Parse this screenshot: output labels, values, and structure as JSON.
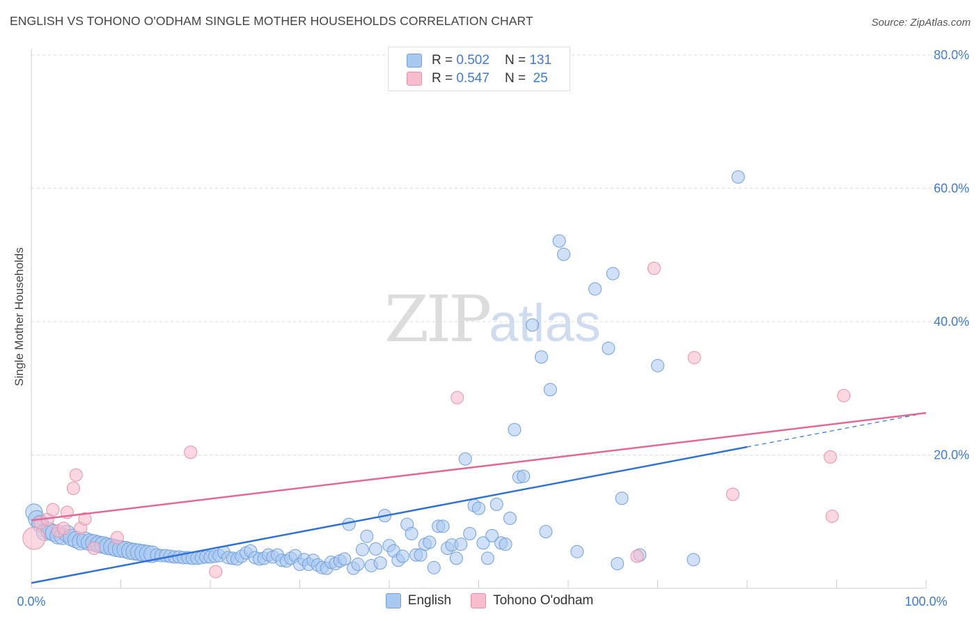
{
  "title": "ENGLISH VS TOHONO O'ODHAM SINGLE MOTHER HOUSEHOLDS CORRELATION CHART",
  "source": "Source: ZipAtlas.com",
  "watermark": {
    "zip": "ZIP",
    "atlas": "atlas"
  },
  "legend": {
    "english": {
      "r_label": "R =",
      "r_value": "0.502",
      "n_label": "N =",
      "n_value": "131"
    },
    "tohono": {
      "r_label": "R =",
      "r_value": "0.547",
      "n_label": "N =",
      "n_value": "25"
    }
  },
  "colors": {
    "english_fill": "#a9c8f0",
    "english_stroke": "#6f9fdc",
    "english_line": "#2f72d4",
    "tohono_fill": "#f7bccd",
    "tohono_stroke": "#e890aa",
    "tohono_line": "#e06a94",
    "grid": "#d9d9d9",
    "tick_label": "#3d7ad6"
  },
  "chart_data": {
    "type": "scatter",
    "title": "ENGLISH VS TOHONO O'ODHAM SINGLE MOTHER HOUSEHOLDS CORRELATION CHART",
    "xlabel": "",
    "ylabel": "Single Mother Households",
    "xlim": [
      0,
      100
    ],
    "ylim": [
      0,
      80
    ],
    "x_tick_labels": [
      "0.0%",
      "100.0%"
    ],
    "y_ticks": [
      20,
      40,
      60,
      80
    ],
    "y_tick_labels": [
      "20.0%",
      "40.0%",
      "60.0%",
      "80.0%"
    ],
    "grid": true,
    "legend_position": "top-center",
    "series": [
      {
        "name": "English",
        "regression": {
          "x0": 0,
          "y0": 0.8,
          "x1": 80,
          "y1": 21.2,
          "dashed_to_x": 100,
          "dashed_to_y": 26.3
        },
        "points": [
          [
            0.3,
            11.4
          ],
          [
            0.6,
            10.4
          ],
          [
            1,
            9.7
          ],
          [
            1.5,
            8.4
          ],
          [
            2,
            8.6
          ],
          [
            2.5,
            8.3
          ],
          [
            3,
            7.9
          ],
          [
            3.5,
            7.8
          ],
          [
            4,
            8.2
          ],
          [
            4.5,
            7.6
          ],
          [
            5,
            7.3
          ],
          [
            5.5,
            7.0
          ],
          [
            6,
            7.2
          ],
          [
            6.5,
            6.9
          ],
          [
            7,
            6.8
          ],
          [
            7.5,
            6.6
          ],
          [
            8,
            6.5
          ],
          [
            8.5,
            6.3
          ],
          [
            9,
            6.2
          ],
          [
            9.5,
            6.0
          ],
          [
            10,
            5.9
          ],
          [
            10.5,
            5.8
          ],
          [
            11,
            5.6
          ],
          [
            11.5,
            5.5
          ],
          [
            12,
            5.4
          ],
          [
            12.5,
            5.3
          ],
          [
            13,
            5.2
          ],
          [
            13.5,
            5.1
          ],
          [
            14,
            5.0
          ],
          [
            14.5,
            4.9
          ],
          [
            15,
            4.9
          ],
          [
            15.5,
            4.8
          ],
          [
            16,
            4.7
          ],
          [
            16.5,
            4.7
          ],
          [
            17,
            4.6
          ],
          [
            17.5,
            4.6
          ],
          [
            18,
            4.5
          ],
          [
            18.5,
            4.5
          ],
          [
            19,
            4.6
          ],
          [
            19.5,
            4.7
          ],
          [
            20,
            4.7
          ],
          [
            20.5,
            4.8
          ],
          [
            21,
            4.9
          ],
          [
            21.5,
            5.4
          ],
          [
            22,
            4.6
          ],
          [
            22.5,
            4.5
          ],
          [
            23,
            4.4
          ],
          [
            23.5,
            4.8
          ],
          [
            24,
            5.3
          ],
          [
            24.5,
            5.6
          ],
          [
            25,
            4.6
          ],
          [
            25.5,
            4.4
          ],
          [
            26,
            4.5
          ],
          [
            26.5,
            5.0
          ],
          [
            27,
            4.7
          ],
          [
            27.5,
            5.0
          ],
          [
            28,
            4.2
          ],
          [
            28.5,
            4.1
          ],
          [
            29,
            4.5
          ],
          [
            29.5,
            4.9
          ],
          [
            30,
            3.6
          ],
          [
            30.5,
            4.3
          ],
          [
            31,
            3.6
          ],
          [
            31.5,
            4.2
          ],
          [
            32,
            3.5
          ],
          [
            32.5,
            3.1
          ],
          [
            33,
            3.0
          ],
          [
            33.5,
            3.9
          ],
          [
            34,
            3.7
          ],
          [
            34.5,
            4.1
          ],
          [
            35,
            4.4
          ],
          [
            35.5,
            9.6
          ],
          [
            36,
            3.0
          ],
          [
            36.5,
            3.6
          ],
          [
            37,
            5.8
          ],
          [
            37.5,
            7.8
          ],
          [
            38,
            3.4
          ],
          [
            38.5,
            5.9
          ],
          [
            39,
            3.8
          ],
          [
            39.5,
            10.9
          ],
          [
            40,
            6.4
          ],
          [
            40.5,
            5.6
          ],
          [
            41,
            4.2
          ],
          [
            41.5,
            4.8
          ],
          [
            42,
            9.6
          ],
          [
            42.5,
            8.2
          ],
          [
            43,
            5.0
          ],
          [
            43.5,
            5.0
          ],
          [
            44,
            6.6
          ],
          [
            44.5,
            6.9
          ],
          [
            45,
            3.1
          ],
          [
            45.5,
            9.3
          ],
          [
            46,
            9.3
          ],
          [
            46.5,
            6.0
          ],
          [
            47,
            6.5
          ],
          [
            47.5,
            4.5
          ],
          [
            48,
            6.6
          ],
          [
            48.5,
            19.4
          ],
          [
            49,
            8.2
          ],
          [
            49.5,
            12.4
          ],
          [
            50,
            12.0
          ],
          [
            50.5,
            6.8
          ],
          [
            51,
            4.5
          ],
          [
            51.5,
            7.9
          ],
          [
            52,
            12.6
          ],
          [
            52.5,
            6.8
          ],
          [
            53,
            6.6
          ],
          [
            53.5,
            10.5
          ],
          [
            54,
            23.8
          ],
          [
            54.5,
            16.7
          ],
          [
            55,
            16.8
          ],
          [
            56,
            39.5
          ],
          [
            57,
            34.7
          ],
          [
            57.5,
            8.5
          ],
          [
            58,
            29.8
          ],
          [
            59,
            52.1
          ],
          [
            59.5,
            50.1
          ],
          [
            61,
            5.5
          ],
          [
            63,
            44.9
          ],
          [
            64.5,
            36.0
          ],
          [
            65,
            47.2
          ],
          [
            65.5,
            3.7
          ],
          [
            66,
            13.5
          ],
          [
            68,
            5.0
          ],
          [
            70,
            33.4
          ],
          [
            74,
            4.3
          ],
          [
            79,
            61.7
          ]
        ]
      },
      {
        "name": "Tohono O'odham",
        "regression": {
          "x0": 0,
          "y0": 10.2,
          "x1": 100,
          "y1": 26.3
        },
        "points": [
          [
            0.3,
            7.5
          ],
          [
            1,
            9.8
          ],
          [
            1.8,
            10.3
          ],
          [
            2.4,
            11.8
          ],
          [
            3,
            8.6
          ],
          [
            3.6,
            9.0
          ],
          [
            4,
            11.4
          ],
          [
            4.7,
            15.0
          ],
          [
            5,
            17.0
          ],
          [
            5.5,
            9.0
          ],
          [
            6,
            10.4
          ],
          [
            7,
            6.0
          ],
          [
            9.6,
            7.6
          ],
          [
            17.8,
            20.4
          ],
          [
            20.6,
            2.5
          ],
          [
            47.6,
            28.6
          ],
          [
            67.7,
            4.8
          ],
          [
            69.6,
            48.0
          ],
          [
            74.1,
            34.6
          ],
          [
            78.4,
            14.1
          ],
          [
            89.3,
            19.7
          ],
          [
            89.5,
            10.8
          ],
          [
            90.8,
            28.9
          ]
        ]
      }
    ]
  }
}
